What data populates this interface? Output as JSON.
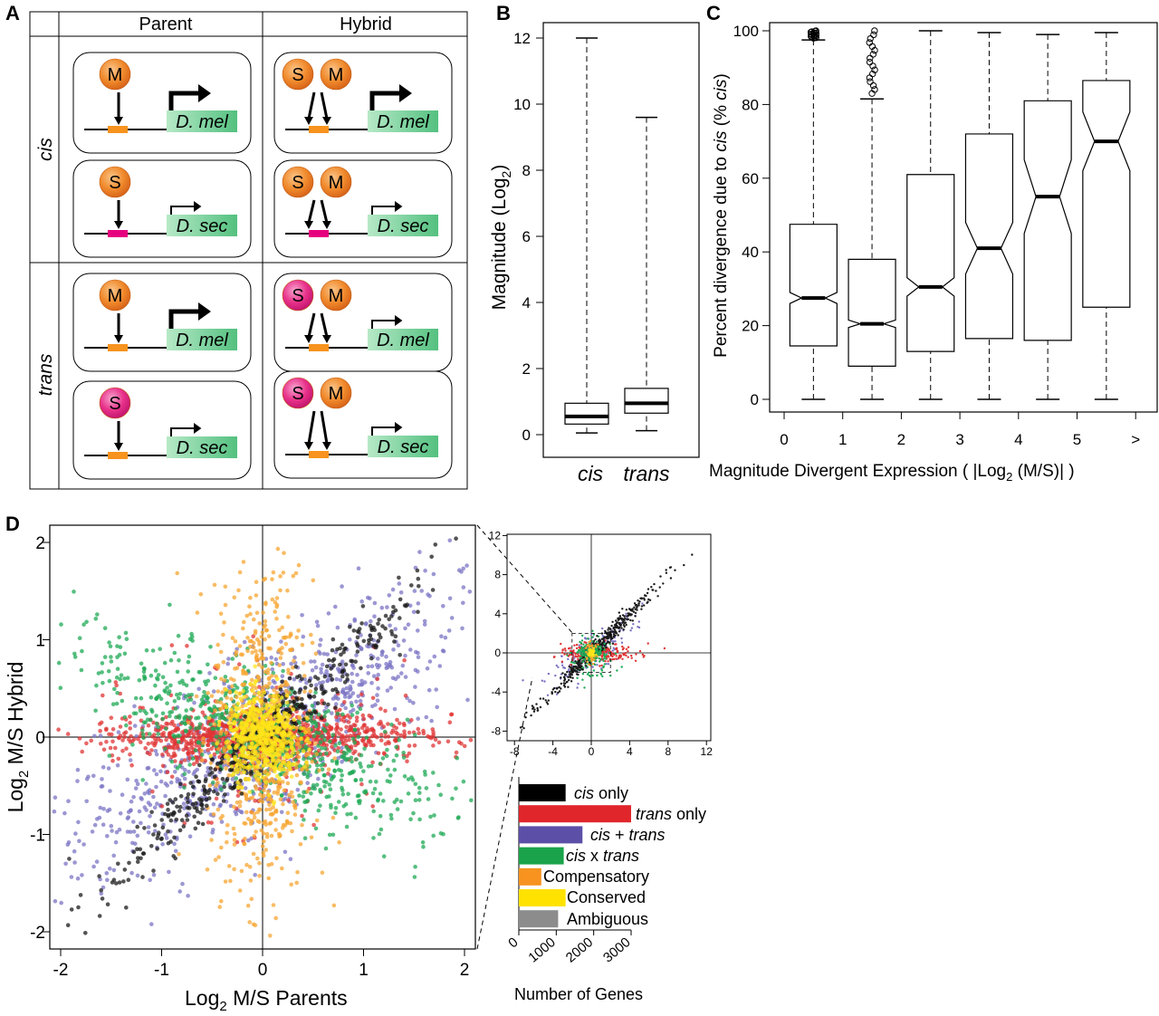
{
  "panel_labels": {
    "a": "A",
    "b": "B",
    "c": "C",
    "d": "D"
  },
  "panel_a": {
    "col_headers": [
      "Parent",
      "Hybrid"
    ],
    "row_labels": [
      "cis",
      "trans"
    ],
    "species_mel": "D. mel",
    "species_sec": "D. sec",
    "factor_m": "M",
    "factor_s": "S",
    "colors": {
      "orange_factor": "#f08a2c",
      "pink_factor": "#e8318a",
      "orange_site": "#f7931e",
      "pink_site": "#e6007e",
      "gene_box": "#7fd3a0"
    }
  },
  "chart_data": [
    {
      "id": "B",
      "type": "box",
      "ylabel": "Magnitude (Log2)",
      "ylim": [
        0,
        12
      ],
      "yticks": [
        0,
        2,
        4,
        6,
        8,
        10,
        12
      ],
      "categories": [
        "cis",
        "trans"
      ],
      "boxes": [
        {
          "name": "cis",
          "min": 0.05,
          "q1": 0.32,
          "median": 0.55,
          "q3": 0.95,
          "max": 12.0
        },
        {
          "name": "trans",
          "min": 0.12,
          "q1": 0.65,
          "median": 0.95,
          "q3": 1.4,
          "max": 9.6
        }
      ]
    },
    {
      "id": "C",
      "type": "box",
      "ylabel": "Percent divergence due to cis (% cis)",
      "xlabel": "Magnitude Divergent Expression ( |Log2 (M/S)| )",
      "ylim": [
        0,
        100
      ],
      "yticks": [
        0,
        20,
        40,
        60,
        80,
        100
      ],
      "xticks": [
        "0",
        "1",
        "2",
        "3",
        "4",
        "5",
        ">"
      ],
      "boxes": [
        {
          "bin": "0-1",
          "min": 0,
          "q1": 14.5,
          "median": 27.5,
          "q3": 47.5,
          "max": 97.5,
          "notch": [
            26,
            29
          ],
          "outliers": [
            98,
            99,
            100
          ]
        },
        {
          "bin": "1-2",
          "min": 0,
          "q1": 9,
          "median": 20.5,
          "q3": 38,
          "max": 81.5,
          "notch": [
            19.5,
            21.5
          ],
          "outliers": [
            83,
            86,
            89,
            92,
            95,
            98,
            100
          ]
        },
        {
          "bin": "2-3",
          "min": 0,
          "q1": 13,
          "median": 30.5,
          "q3": 61,
          "max": 100,
          "notch": [
            28,
            33
          ]
        },
        {
          "bin": "3-4",
          "min": 0,
          "q1": 16.5,
          "median": 41,
          "q3": 72,
          "max": 99.5,
          "notch": [
            34,
            48
          ]
        },
        {
          "bin": "4-5",
          "min": 0,
          "q1": 16,
          "median": 55,
          "q3": 81,
          "max": 99,
          "notch": [
            45,
            65
          ]
        },
        {
          "bin": ">5",
          "min": 0,
          "q1": 25,
          "median": 70,
          "q3": 86.5,
          "max": 99.5,
          "notch": [
            62,
            78
          ]
        }
      ]
    },
    {
      "id": "D-main",
      "type": "scatter",
      "xlabel": "Log2 M/S Parents",
      "ylabel": "Log2 M/S Hybrid",
      "xlim": [
        -2.1,
        2.1
      ],
      "ylim": [
        -2.1,
        2.1
      ],
      "xticks": [
        -2,
        -1,
        0,
        1,
        2
      ],
      "yticks": [
        -2,
        -1,
        0,
        1,
        2
      ],
      "series": [
        {
          "name": "cis only",
          "color": "#1a1a1a"
        },
        {
          "name": "trans only",
          "color": "#e03434"
        },
        {
          "name": "cis + trans",
          "color": "#7b74c4"
        },
        {
          "name": "cis x trans",
          "color": "#1faa55"
        },
        {
          "name": "Compensatory",
          "color": "#f7a531"
        },
        {
          "name": "Conserved",
          "color": "#ffe41a"
        }
      ]
    },
    {
      "id": "D-inset",
      "type": "scatter",
      "xlim": [
        -9,
        12.5
      ],
      "ylim": [
        -8.5,
        12.5
      ],
      "xticks": [
        -8,
        -4,
        0,
        4,
        8,
        12
      ],
      "yticks": [
        -8,
        -4,
        0,
        4,
        8,
        12
      ]
    },
    {
      "id": "D-bars",
      "type": "bar",
      "orientation": "horizontal",
      "xlabel": "Number of Genes",
      "xticks": [
        0,
        1000,
        2000,
        3000
      ],
      "categories": [
        "cis only",
        "trans only",
        "cis + trans",
        "cis x trans",
        "Compensatory",
        "Conserved",
        "Ambiguous"
      ],
      "values": [
        1250,
        3000,
        1700,
        1200,
        600,
        1250,
        1050
      ],
      "colors": [
        "#000000",
        "#e0262b",
        "#5b4fa8",
        "#1aa34a",
        "#f7931e",
        "#ffe200",
        "#8c8c8c"
      ]
    }
  ],
  "bar_labels": {
    "cis_only": {
      "a": "cis",
      "b": " only"
    },
    "trans_only": {
      "a": "trans",
      "b": " only"
    },
    "cis_plus_trans": {
      "a": "cis",
      "b": " + ",
      "c": "trans"
    },
    "cis_x_trans": {
      "a": "cis",
      "b": " x ",
      "c": "trans"
    },
    "compensatory": "Compensatory",
    "conserved": "Conserved",
    "ambiguous": "Ambiguous"
  },
  "axis_text": {
    "b_ylabel_a": "Magnitude (Log",
    "b_ylabel_sub": "2",
    "b_ylabel_b": ")",
    "c_ylabel_a": "Percent divergence due to ",
    "c_ylabel_b": "cis",
    "c_ylabel_c": " (% ",
    "c_ylabel_d": "cis",
    "c_ylabel_e": ")",
    "c_xlabel_a": "Magnitude Divergent Expression ( |Log",
    "c_xlabel_sub": "2",
    "c_xlabel_b": " (M/S)| )",
    "d_xlabel_a": "Log",
    "d_xlabel_sub": "2",
    "d_xlabel_b": " M/S Parents",
    "d_ylabel_a": "Log",
    "d_ylabel_sub": "2",
    "d_ylabel_b": " M/S Hybrid",
    "bars_xlabel": "Number of Genes"
  }
}
